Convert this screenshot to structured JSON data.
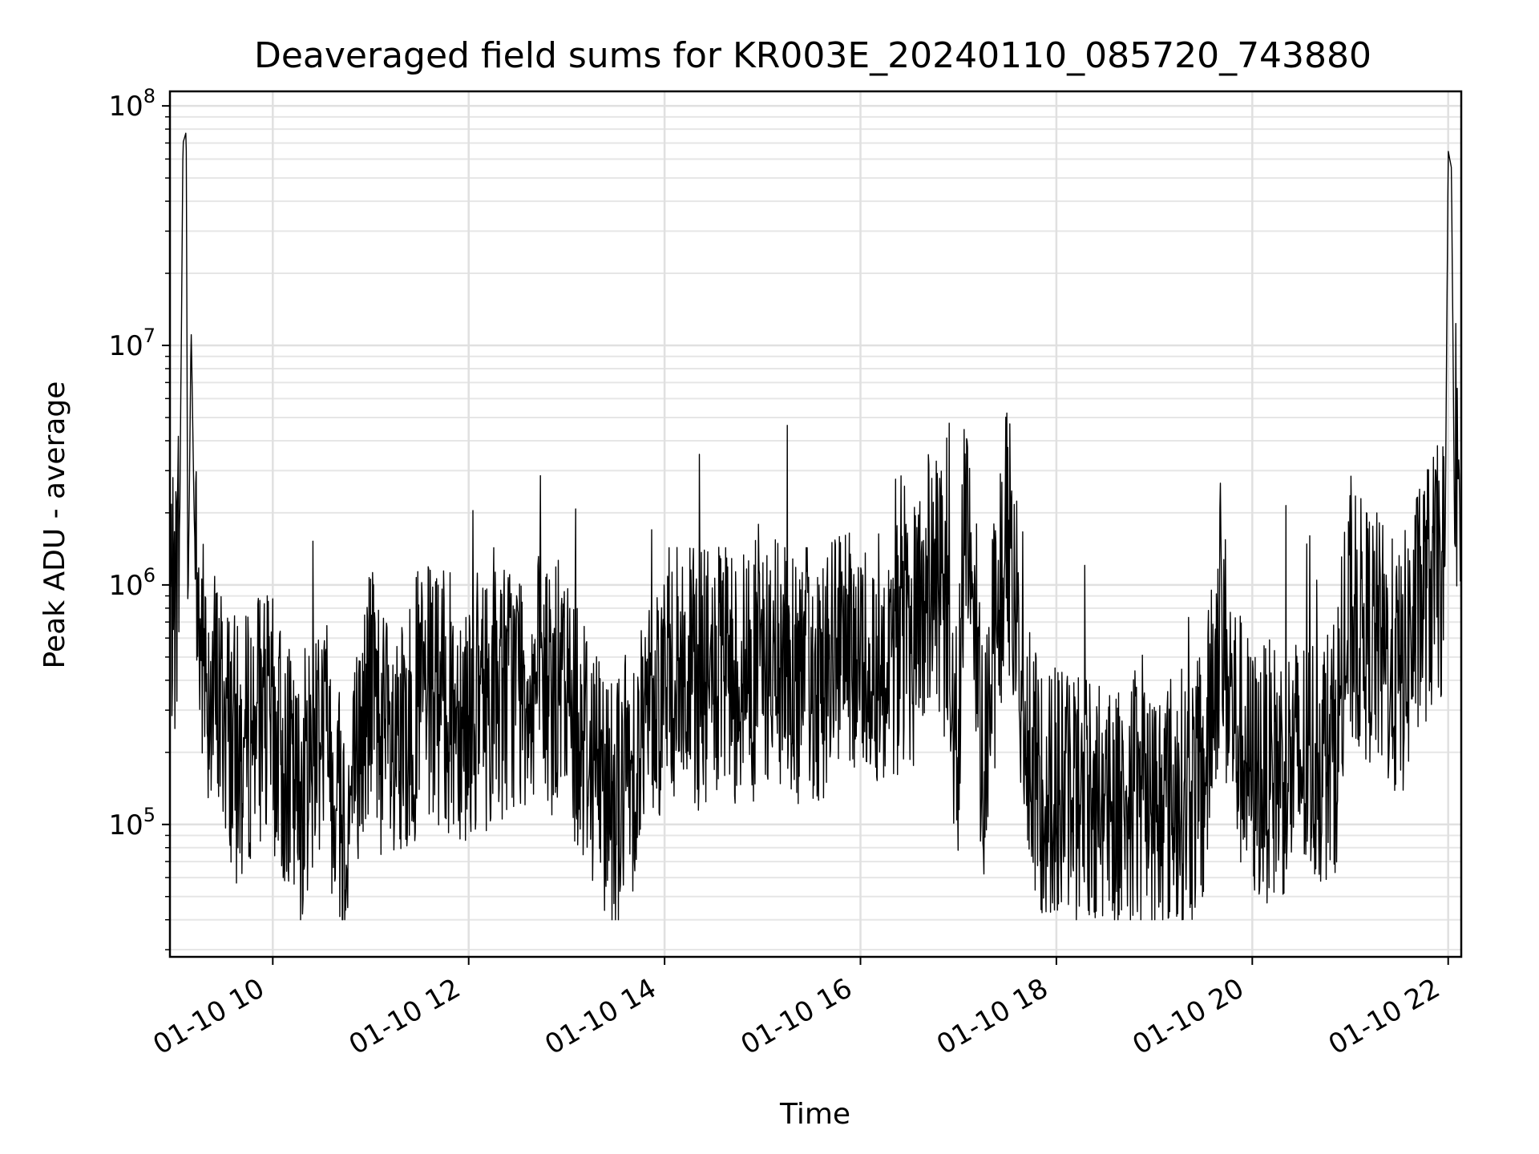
{
  "chart_data": {
    "type": "line",
    "title": "Deaveraged field sums for KR003E_20240110_085720_743880",
    "xlabel": "Time",
    "ylabel": "Peak ADU - average",
    "yscale": "log",
    "ylim": [
      28000,
      115000000
    ],
    "xlim": [
      "2024-01-10 08:57",
      "2024-01-10 22:08"
    ],
    "grid": true,
    "line_color": "#000000",
    "x_ticks": [
      {
        "value": "2024-01-10 10:00",
        "label": "01-10 10"
      },
      {
        "value": "2024-01-10 12:00",
        "label": "01-10 12"
      },
      {
        "value": "2024-01-10 14:00",
        "label": "01-10 14"
      },
      {
        "value": "2024-01-10 16:00",
        "label": "01-10 16"
      },
      {
        "value": "2024-01-10 18:00",
        "label": "01-10 18"
      },
      {
        "value": "2024-01-10 20:00",
        "label": "01-10 20"
      },
      {
        "value": "2024-01-10 22:00",
        "label": "01-10 22"
      }
    ],
    "y_ticks": [
      {
        "value": 100000,
        "base": "10",
        "exp": "5"
      },
      {
        "value": 1000000,
        "base": "10",
        "exp": "6"
      },
      {
        "value": 10000000,
        "base": "10",
        "exp": "7"
      },
      {
        "value": 100000000,
        "base": "10",
        "exp": "8"
      }
    ],
    "series": [
      {
        "points": [
          [
            "2024-01-10 08:57",
            900000
          ],
          [
            "2024-01-10 09:00",
            750000
          ],
          [
            "2024-01-10 09:03",
            1800000
          ],
          [
            "2024-01-10 09:05",
            70000000
          ],
          [
            "2024-01-10 09:07",
            78000000
          ],
          [
            "2024-01-10 09:08",
            700000
          ],
          [
            "2024-01-10 09:10",
            12000000
          ],
          [
            "2024-01-10 09:12",
            1700000
          ],
          [
            "2024-01-10 09:15",
            600000
          ],
          [
            "2024-01-10 09:20",
            400000
          ],
          [
            "2024-01-10 09:30",
            300000
          ],
          [
            "2024-01-10 09:40",
            180000
          ],
          [
            "2024-01-10 09:50",
            300000
          ],
          [
            "2024-01-10 10:00",
            250000
          ],
          [
            "2024-01-10 10:15",
            120000
          ],
          [
            "2024-01-10 10:30",
            300000
          ],
          [
            "2024-01-10 10:45",
            90000
          ],
          [
            "2024-01-10 11:00",
            400000
          ],
          [
            "2024-01-10 11:15",
            150000
          ],
          [
            "2024-01-10 11:30",
            350000
          ],
          [
            "2024-01-10 12:00",
            300000
          ],
          [
            "2024-01-10 12:30",
            400000
          ],
          [
            "2024-01-10 13:00",
            350000
          ],
          [
            "2024-01-10 13:30",
            120000
          ],
          [
            "2024-01-10 14:00",
            420000
          ],
          [
            "2024-01-10 14:30",
            400000
          ],
          [
            "2024-01-10 15:00",
            450000
          ],
          [
            "2024-01-10 15:30",
            420000
          ],
          [
            "2024-01-10 16:00",
            480000
          ],
          [
            "2024-01-10 16:30",
            550000
          ],
          [
            "2024-01-10 16:45",
            1200000
          ],
          [
            "2024-01-10 17:00",
            250000
          ],
          [
            "2024-01-10 17:05",
            2800000
          ],
          [
            "2024-01-10 17:15",
            200000
          ],
          [
            "2024-01-10 17:30",
            1800000
          ],
          [
            "2024-01-10 17:45",
            150000
          ],
          [
            "2024-01-10 18:00",
            140000
          ],
          [
            "2024-01-10 18:30",
            130000
          ],
          [
            "2024-01-10 19:00",
            120000
          ],
          [
            "2024-01-10 19:30",
            140000
          ],
          [
            "2024-01-10 19:40",
            700000
          ],
          [
            "2024-01-10 19:50",
            250000
          ],
          [
            "2024-01-10 20:00",
            160000
          ],
          [
            "2024-01-10 20:30",
            180000
          ],
          [
            "2024-01-10 20:50",
            200000
          ],
          [
            "2024-01-10 21:00",
            700000
          ],
          [
            "2024-01-10 21:15",
            600000
          ],
          [
            "2024-01-10 21:30",
            400000
          ],
          [
            "2024-01-10 21:45",
            900000
          ],
          [
            "2024-01-10 21:58",
            1200000
          ],
          [
            "2024-01-10 22:00",
            65000000
          ],
          [
            "2024-01-10 22:02",
            55000000
          ],
          [
            "2024-01-10 22:04",
            1500000
          ],
          [
            "2024-01-10 22:08",
            1000000
          ]
        ]
      }
    ]
  }
}
